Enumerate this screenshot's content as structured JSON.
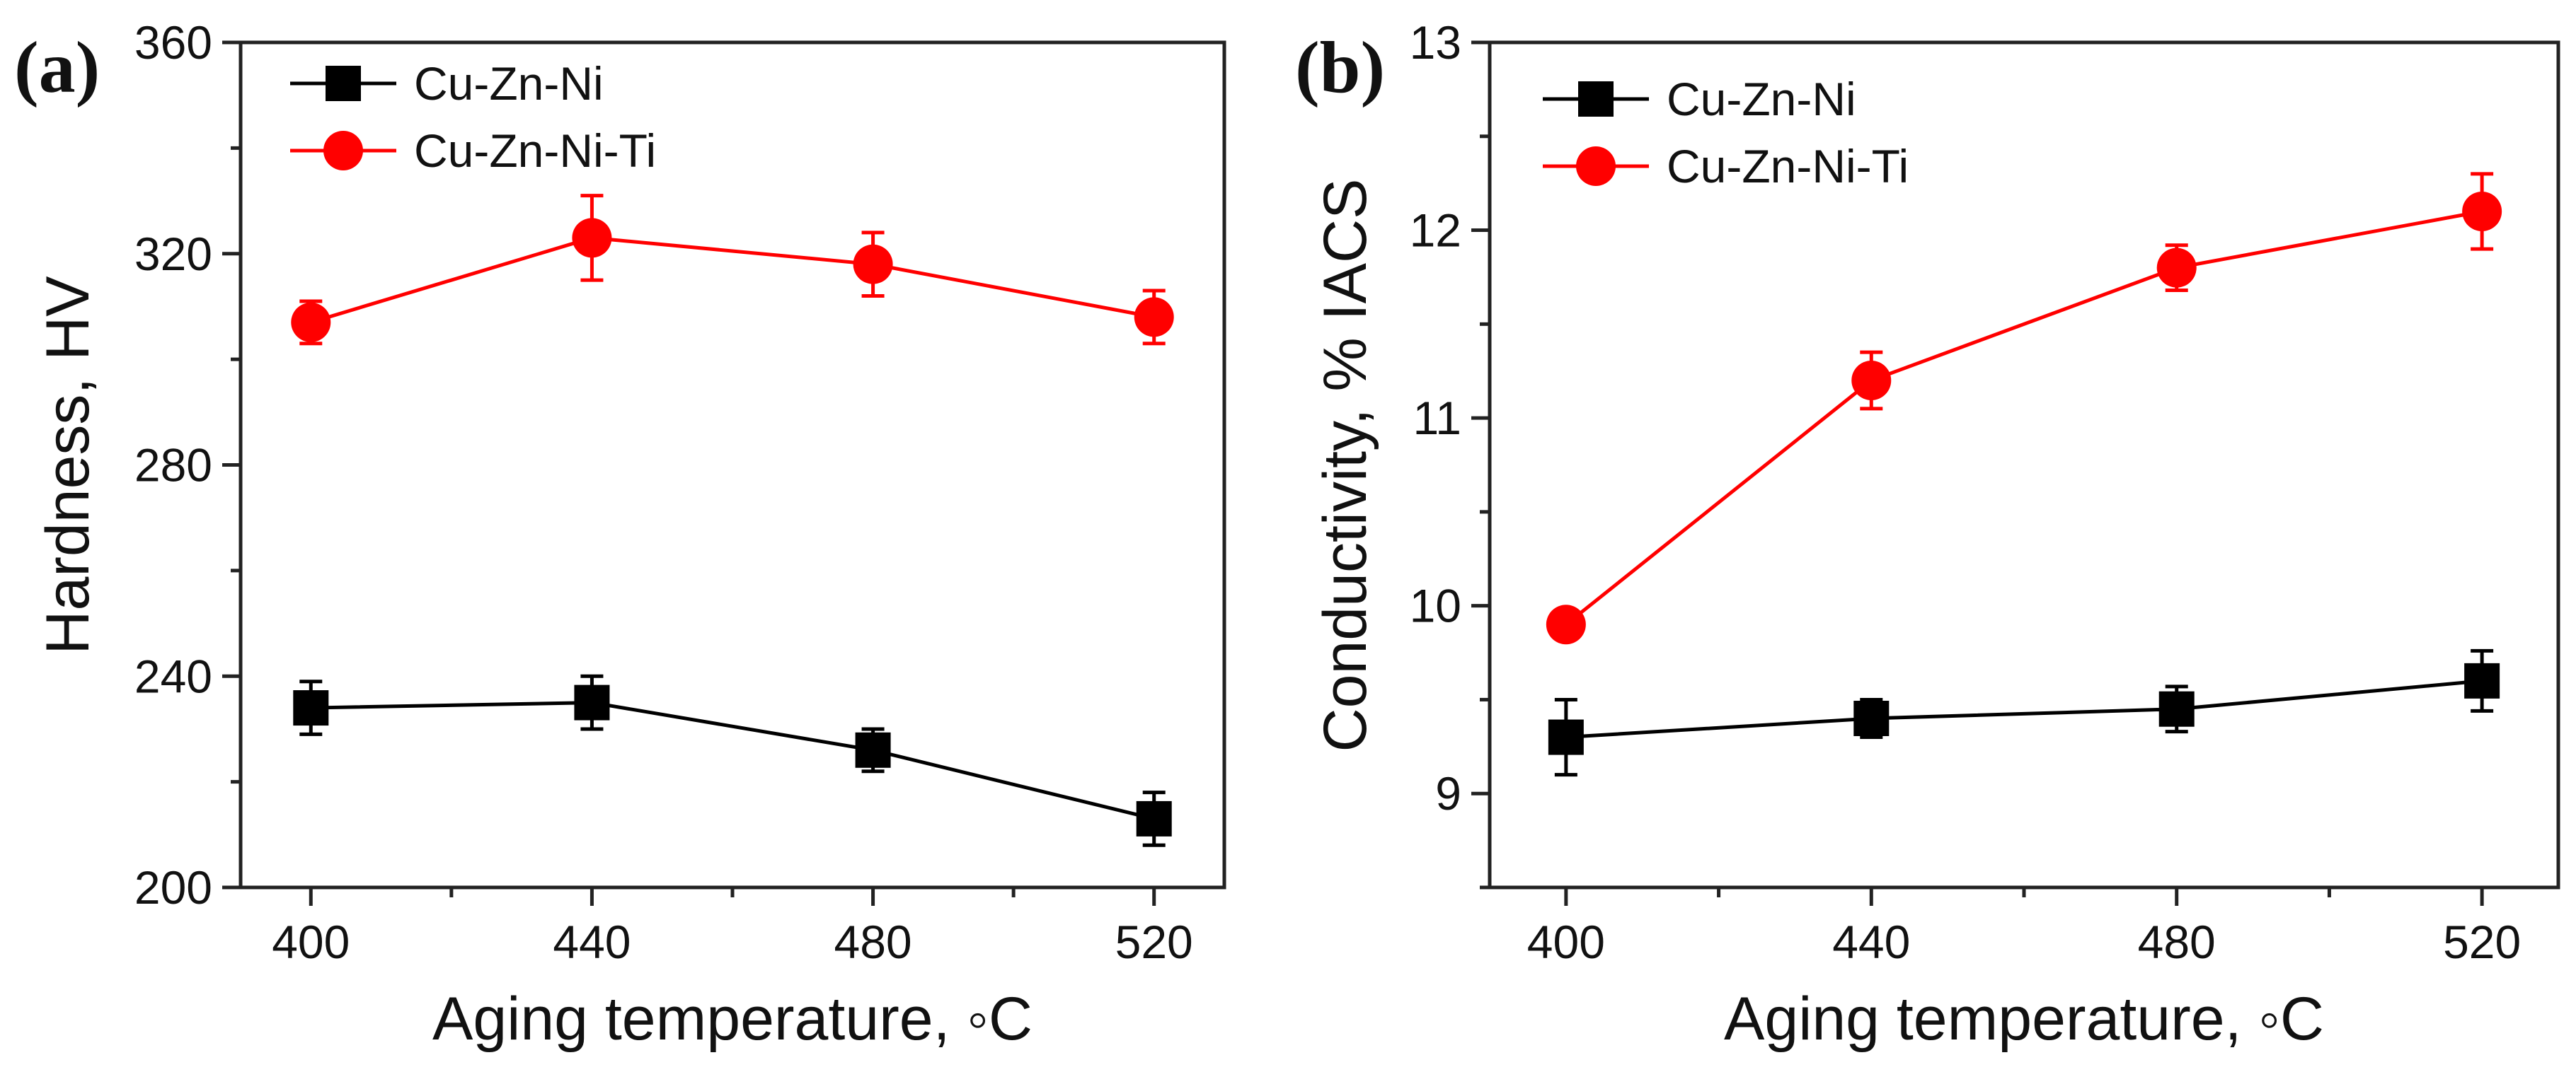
{
  "chart_data": [
    {
      "panel": "(a)",
      "type": "line",
      "title": "",
      "xlabel": "Aging temperature, ◦C",
      "ylabel": "Hardness, HV",
      "x": [
        400,
        440,
        480,
        520
      ],
      "xlim": [
        390,
        530
      ],
      "xticks": [
        400,
        440,
        480,
        520
      ],
      "ylim": [
        200,
        360
      ],
      "yticks": [
        200,
        240,
        280,
        320,
        360
      ],
      "grid": false,
      "legend_position": "top-left",
      "series": [
        {
          "name": "Cu-Zn-Ni",
          "color": "#000000",
          "marker": "square",
          "values": [
            234,
            235,
            226,
            213
          ],
          "errors": [
            5,
            5,
            4,
            5
          ]
        },
        {
          "name": "Cu-Zn-Ni-Ti",
          "color": "#ff0000",
          "marker": "circle",
          "values": [
            307,
            323,
            318,
            308
          ],
          "errors": [
            4,
            8,
            6,
            5
          ]
        }
      ]
    },
    {
      "panel": "(b)",
      "type": "line",
      "title": "",
      "xlabel": "Aging temperature, ◦C",
      "ylabel": "Conductivity, % IACS",
      "x": [
        400,
        440,
        480,
        520
      ],
      "xlim": [
        390,
        530
      ],
      "xticks": [
        400,
        440,
        480,
        520
      ],
      "ylim": [
        8.5,
        13
      ],
      "yticks": [
        9,
        10,
        11,
        12,
        13
      ],
      "grid": false,
      "legend_position": "top-left",
      "series": [
        {
          "name": "Cu-Zn-Ni",
          "color": "#000000",
          "marker": "square",
          "values": [
            9.3,
            9.4,
            9.45,
            9.6
          ],
          "errors": [
            0.2,
            0.1,
            0.12,
            0.16
          ]
        },
        {
          "name": "Cu-Zn-Ni-Ti",
          "color": "#ff0000",
          "marker": "circle",
          "values": [
            9.9,
            11.2,
            11.8,
            12.1
          ],
          "errors": [
            0.06,
            0.15,
            0.12,
            0.2
          ]
        }
      ]
    }
  ]
}
